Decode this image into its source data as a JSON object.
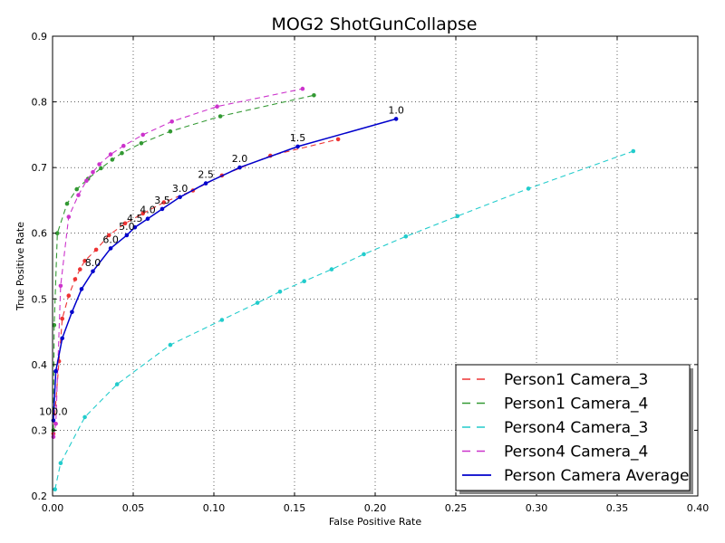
{
  "chart_data": {
    "type": "line",
    "title": "MOG2 ShotGunCollapse",
    "xlabel": "False Positive Rate",
    "ylabel": "True Positive Rate",
    "xlim": [
      0.0,
      0.4
    ],
    "ylim": [
      0.2,
      0.9
    ],
    "x_ticks": [
      "0.00",
      "0.05",
      "0.10",
      "0.15",
      "0.20",
      "0.25",
      "0.30",
      "0.35",
      "0.40"
    ],
    "y_ticks": [
      "0.2",
      "0.3",
      "0.4",
      "0.5",
      "0.6",
      "0.7",
      "0.8",
      "0.9"
    ],
    "grid": true,
    "legend_position": "lower-right",
    "series": [
      {
        "name": "Person1 Camera_3",
        "color": "#ee3333",
        "style": "dashed",
        "points": [
          [
            0.0005,
            0.295
          ],
          [
            0.004,
            0.405
          ],
          [
            0.006,
            0.47
          ],
          [
            0.01,
            0.505
          ],
          [
            0.014,
            0.53
          ],
          [
            0.017,
            0.545
          ],
          [
            0.02,
            0.558
          ],
          [
            0.027,
            0.575
          ],
          [
            0.035,
            0.597
          ],
          [
            0.045,
            0.615
          ],
          [
            0.056,
            0.63
          ],
          [
            0.069,
            0.647
          ],
          [
            0.087,
            0.665
          ],
          [
            0.105,
            0.688
          ],
          [
            0.135,
            0.718
          ],
          [
            0.177,
            0.743
          ]
        ]
      },
      {
        "name": "Person1 Camera_4",
        "color": "#339933",
        "style": "dashed",
        "points": [
          [
            0.0005,
            0.3
          ],
          [
            0.001,
            0.46
          ],
          [
            0.003,
            0.6
          ],
          [
            0.009,
            0.645
          ],
          [
            0.015,
            0.667
          ],
          [
            0.022,
            0.683
          ],
          [
            0.03,
            0.699
          ],
          [
            0.037,
            0.712
          ],
          [
            0.043,
            0.722
          ],
          [
            0.055,
            0.737
          ],
          [
            0.073,
            0.755
          ],
          [
            0.104,
            0.778
          ],
          [
            0.162,
            0.81
          ]
        ]
      },
      {
        "name": "Person4 Camera_3",
        "color": "#22cccc",
        "style": "dashed",
        "points": [
          [
            0.0015,
            0.21
          ],
          [
            0.005,
            0.25
          ],
          [
            0.02,
            0.32
          ],
          [
            0.04,
            0.37
          ],
          [
            0.073,
            0.43
          ],
          [
            0.105,
            0.468
          ],
          [
            0.127,
            0.494
          ],
          [
            0.141,
            0.511
          ],
          [
            0.156,
            0.527
          ],
          [
            0.173,
            0.545
          ],
          [
            0.193,
            0.568
          ],
          [
            0.219,
            0.595
          ],
          [
            0.251,
            0.626
          ],
          [
            0.295,
            0.668
          ],
          [
            0.36,
            0.725
          ]
        ]
      },
      {
        "name": "Person4 Camera_4",
        "color": "#cc33cc",
        "style": "dashed",
        "points": [
          [
            0.0005,
            0.29
          ],
          [
            0.002,
            0.31
          ],
          [
            0.005,
            0.52
          ],
          [
            0.01,
            0.625
          ],
          [
            0.016,
            0.658
          ],
          [
            0.021,
            0.68
          ],
          [
            0.025,
            0.693
          ],
          [
            0.029,
            0.705
          ],
          [
            0.036,
            0.72
          ],
          [
            0.044,
            0.733
          ],
          [
            0.056,
            0.75
          ],
          [
            0.074,
            0.77
          ],
          [
            0.102,
            0.793
          ],
          [
            0.155,
            0.82
          ]
        ]
      },
      {
        "name": "Person Camera Average",
        "color": "#0000cc",
        "style": "solid",
        "points": [
          [
            0.0005,
            0.315
          ],
          [
            0.002,
            0.39
          ],
          [
            0.006,
            0.44
          ],
          [
            0.012,
            0.48
          ],
          [
            0.018,
            0.515
          ],
          [
            0.025,
            0.542
          ],
          [
            0.036,
            0.577
          ],
          [
            0.046,
            0.597
          ],
          [
            0.051,
            0.609
          ],
          [
            0.059,
            0.622
          ],
          [
            0.068,
            0.637
          ],
          [
            0.079,
            0.655
          ],
          [
            0.095,
            0.676
          ],
          [
            0.116,
            0.7
          ],
          [
            0.152,
            0.732
          ],
          [
            0.213,
            0.774
          ]
        ]
      }
    ],
    "threshold_labels": [
      {
        "text": "1.0",
        "x": 0.213,
        "y": 0.774
      },
      {
        "text": "1.5",
        "x": 0.152,
        "y": 0.732
      },
      {
        "text": "2.0",
        "x": 0.116,
        "y": 0.7
      },
      {
        "text": "2.5",
        "x": 0.095,
        "y": 0.676
      },
      {
        "text": "3.0",
        "x": 0.079,
        "y": 0.655
      },
      {
        "text": "3.5",
        "x": 0.068,
        "y": 0.637
      },
      {
        "text": "4.0",
        "x": 0.059,
        "y": 0.622
      },
      {
        "text": "4.5",
        "x": 0.051,
        "y": 0.609
      },
      {
        "text": "5.0",
        "x": 0.046,
        "y": 0.597
      },
      {
        "text": "6.0",
        "x": 0.036,
        "y": 0.577
      },
      {
        "text": "8.0",
        "x": 0.025,
        "y": 0.542
      },
      {
        "text": "100.0",
        "x": 0.0005,
        "y": 0.315
      }
    ]
  }
}
